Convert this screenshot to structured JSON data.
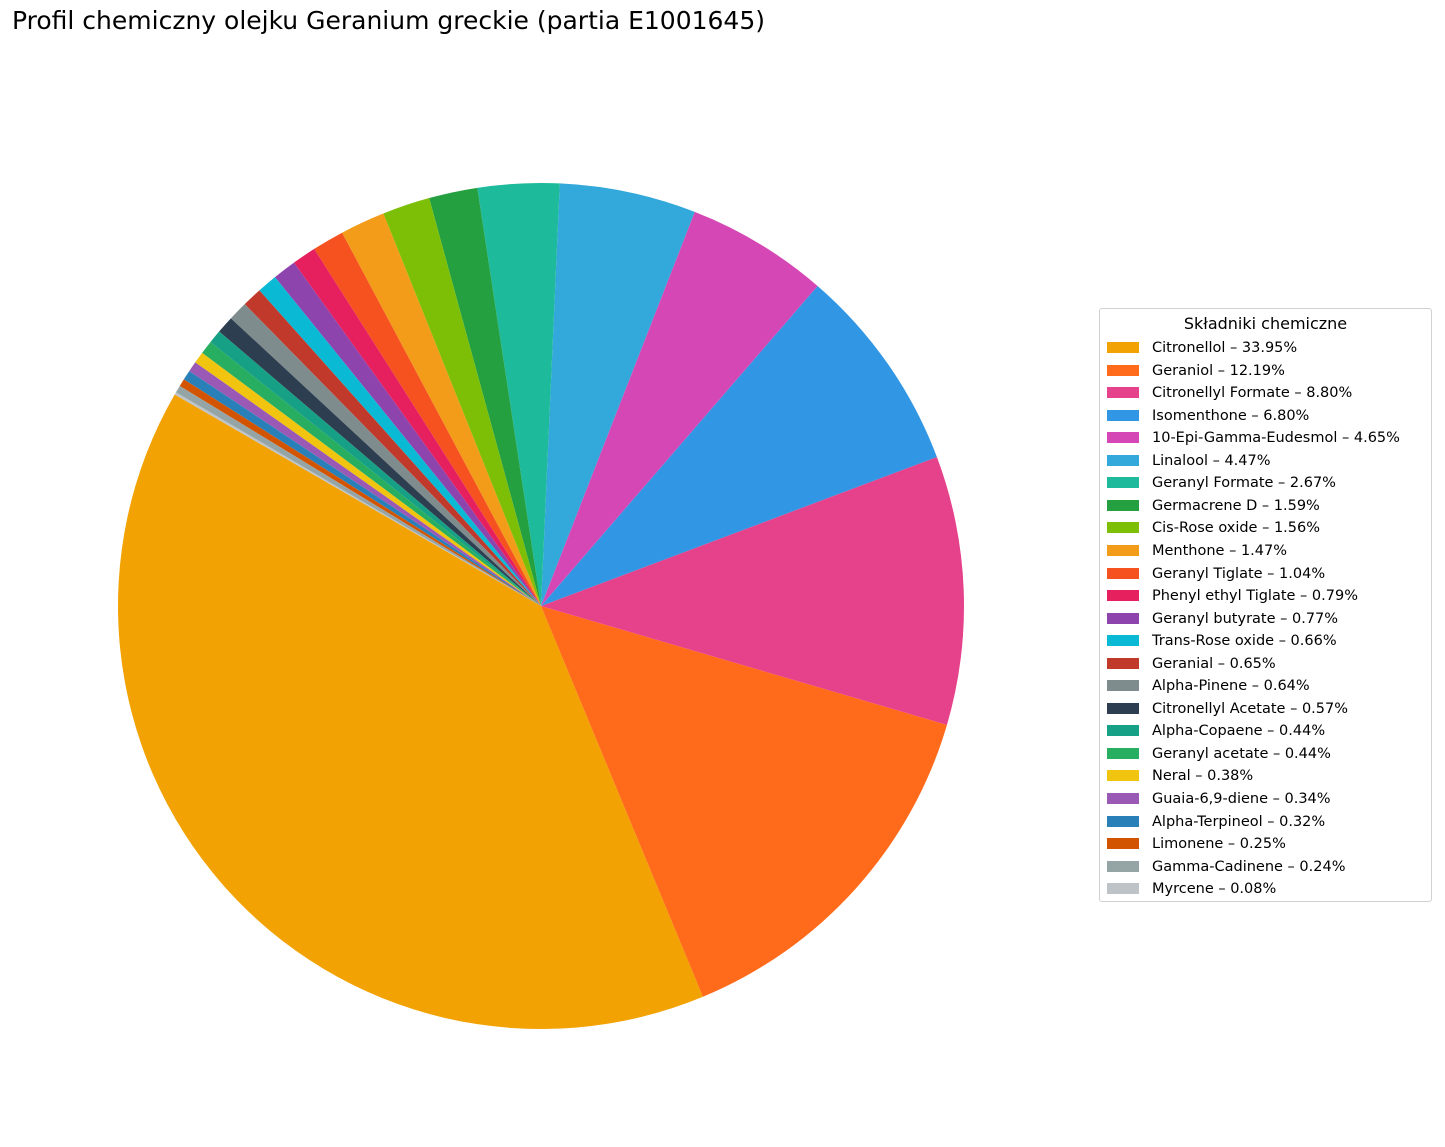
{
  "chart_data": {
    "type": "pie",
    "title": "Profil chemiczny olejku Geranium greckie (partia E1001645)",
    "legend_title": "Składniki chemiczne",
    "legend_position": "right",
    "start_angle_deg": 150,
    "direction": "counterclockwise",
    "slices": [
      {
        "name": "Citronellol",
        "value": 33.95,
        "legend_label": "Citronellol – 33.95%",
        "color": "#f2a202"
      },
      {
        "name": "Geraniol",
        "value": 12.19,
        "legend_label": "Geraniol – 12.19%",
        "color": "#ff6a1b"
      },
      {
        "name": "Citronellyl Formate",
        "value": 8.8,
        "legend_label": "Citronellyl Formate – 8.80%",
        "color": "#e6418b"
      },
      {
        "name": "Isomenthone",
        "value": 6.8,
        "legend_label": "Isomenthone – 6.80%",
        "color": "#3196e4"
      },
      {
        "name": "10-Epi-Gamma-Eudesmol",
        "value": 4.65,
        "legend_label": "10-Epi-Gamma-Eudesmol – 4.65%",
        "color": "#d547b5"
      },
      {
        "name": "Linalool",
        "value": 4.47,
        "legend_label": "Linalool – 4.47%",
        "color": "#33a8da"
      },
      {
        "name": "Geranyl Formate",
        "value": 2.67,
        "legend_label": "Geranyl Formate – 2.67%",
        "color": "#1dba9b"
      },
      {
        "name": "Germacrene D",
        "value": 1.59,
        "legend_label": "Germacrene D – 1.59%",
        "color": "#25a041"
      },
      {
        "name": "Cis-Rose oxide",
        "value": 1.56,
        "legend_label": "Cis-Rose oxide – 1.56%",
        "color": "#7cbf06"
      },
      {
        "name": "Menthone",
        "value": 1.47,
        "legend_label": "Menthone – 1.47%",
        "color": "#f39c1a"
      },
      {
        "name": "Geranyl Tiglate",
        "value": 1.04,
        "legend_label": "Geranyl Tiglate – 1.04%",
        "color": "#f5521f"
      },
      {
        "name": "Phenyl ethyl Tiglate",
        "value": 0.79,
        "legend_label": "Phenyl ethyl Tiglate – 0.79%",
        "color": "#e61f5f"
      },
      {
        "name": "Geranyl butyrate",
        "value": 0.77,
        "legend_label": "Geranyl butyrate – 0.77%",
        "color": "#8e44ad"
      },
      {
        "name": "Trans-Rose oxide",
        "value": 0.66,
        "legend_label": "Trans-Rose oxide – 0.66%",
        "color": "#0ab9d4"
      },
      {
        "name": "Geranial",
        "value": 0.65,
        "legend_label": "Geranial – 0.65%",
        "color": "#c0392b"
      },
      {
        "name": "Alpha-Pinene",
        "value": 0.64,
        "legend_label": "Alpha-Pinene – 0.64%",
        "color": "#7f8c8d"
      },
      {
        "name": "Citronellyl Acetate",
        "value": 0.57,
        "legend_label": "Citronellyl Acetate – 0.57%",
        "color": "#2c3e50"
      },
      {
        "name": "Alpha-Copaene",
        "value": 0.44,
        "legend_label": "Alpha-Copaene – 0.44%",
        "color": "#16a085"
      },
      {
        "name": "Geranyl acetate",
        "value": 0.44,
        "legend_label": "Geranyl acetate – 0.44%",
        "color": "#27ae60"
      },
      {
        "name": "Neral",
        "value": 0.38,
        "legend_label": "Neral – 0.38%",
        "color": "#f1c40f"
      },
      {
        "name": "Guaia-6,9-diene",
        "value": 0.34,
        "legend_label": "Guaia-6,9-diene – 0.34%",
        "color": "#9b59b6"
      },
      {
        "name": "Alpha-Terpineol",
        "value": 0.32,
        "legend_label": "Alpha-Terpineol – 0.32%",
        "color": "#2980b9"
      },
      {
        "name": "Limonene",
        "value": 0.25,
        "legend_label": "Limonene – 0.25%",
        "color": "#d35400"
      },
      {
        "name": "Gamma-Cadinene",
        "value": 0.24,
        "legend_label": "Gamma-Cadinene – 0.24%",
        "color": "#95a5a6"
      },
      {
        "name": "Myrcene",
        "value": 0.08,
        "legend_label": "Myrcene – 0.08%",
        "color": "#bdc3c7"
      }
    ]
  }
}
